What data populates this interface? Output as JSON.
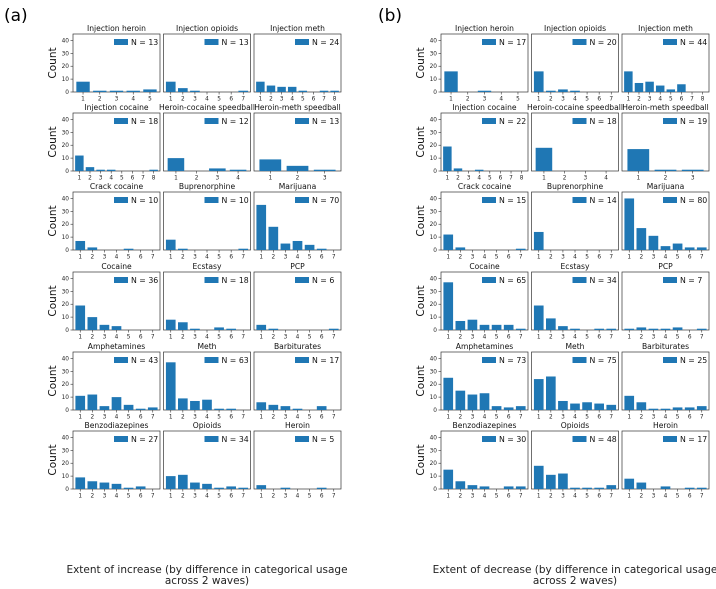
{
  "labels": {
    "panel_a": "(a)",
    "panel_b": "(b)"
  },
  "chart_data": [
    {
      "type": "bar",
      "panel": "(a)",
      "xlabel": "Extent of increase (by difference in categorical usage across 2 waves)",
      "ylabel": "Count",
      "ylim": [
        0,
        45
      ],
      "yticks": [
        0,
        10,
        20,
        30,
        40
      ],
      "bar_color": "#1f77b4",
      "subplots": [
        {
          "title": "Injection heroin",
          "legend": "N = 13",
          "x": [
            1,
            2,
            3,
            4,
            5
          ],
          "values": [
            8,
            1,
            1,
            1,
            2
          ]
        },
        {
          "title": "Injection opioids",
          "legend": "N = 13",
          "x": [
            1,
            2,
            3,
            4,
            5,
            6,
            7
          ],
          "values": [
            8,
            3,
            1,
            0,
            0,
            0,
            1
          ]
        },
        {
          "title": "Injection meth",
          "legend": "N = 24",
          "x": [
            1,
            2,
            3,
            4,
            5,
            6,
            7,
            8
          ],
          "values": [
            8,
            5,
            4,
            4,
            1,
            0,
            1,
            1
          ]
        },
        {
          "title": "Injection cocaine",
          "legend": "N = 18",
          "x": [
            1,
            2,
            3,
            4,
            5,
            6,
            7,
            8
          ],
          "values": [
            12,
            3,
            1,
            1,
            0,
            0,
            0,
            1
          ]
        },
        {
          "title": "Heroin-cocaine speedball",
          "legend": "N = 12",
          "x": [
            1,
            2,
            3,
            4
          ],
          "values": [
            10,
            0,
            2,
            1
          ]
        },
        {
          "title": "Heroin-meth speedball",
          "legend": "N = 13",
          "x": [
            1,
            2,
            3
          ],
          "values": [
            9,
            4,
            1
          ]
        },
        {
          "title": "Crack cocaine",
          "legend": "N = 10",
          "x": [
            1,
            2,
            3,
            4,
            5,
            6,
            7
          ],
          "values": [
            7,
            2,
            0,
            0,
            1,
            0,
            0
          ]
        },
        {
          "title": "Buprenorphine",
          "legend": "N = 10",
          "x": [
            1,
            2,
            3,
            4,
            5,
            6,
            7
          ],
          "values": [
            8,
            1,
            0,
            0,
            0,
            0,
            1
          ]
        },
        {
          "title": "Marijuana",
          "legend": "N = 70",
          "x": [
            1,
            2,
            3,
            4,
            5,
            6,
            7
          ],
          "values": [
            35,
            18,
            5,
            7,
            4,
            1,
            0
          ]
        },
        {
          "title": "Cocaine",
          "legend": "N = 36",
          "x": [
            1,
            2,
            3,
            4,
            5,
            6,
            7
          ],
          "values": [
            19,
            10,
            4,
            3,
            0,
            0,
            0
          ]
        },
        {
          "title": "Ecstasy",
          "legend": "N = 18",
          "x": [
            1,
            2,
            3,
            4,
            5,
            6,
            7
          ],
          "values": [
            8,
            6,
            1,
            0,
            2,
            1,
            0
          ]
        },
        {
          "title": "PCP",
          "legend": "N = 6",
          "x": [
            1,
            2,
            3,
            4,
            5,
            6,
            7
          ],
          "values": [
            4,
            1,
            0,
            0,
            0,
            0,
            1
          ]
        },
        {
          "title": "Amphetamines",
          "legend": "N = 43",
          "x": [
            1,
            2,
            3,
            4,
            5,
            6,
            7
          ],
          "values": [
            11,
            12,
            3,
            10,
            4,
            1,
            2
          ]
        },
        {
          "title": "Meth",
          "legend": "N = 63",
          "x": [
            1,
            2,
            3,
            4,
            5,
            6,
            7
          ],
          "values": [
            37,
            9,
            7,
            8,
            1,
            1,
            0
          ]
        },
        {
          "title": "Barbiturates",
          "legend": "N = 17",
          "x": [
            1,
            2,
            3,
            4,
            5,
            6,
            7
          ],
          "values": [
            6,
            4,
            3,
            1,
            0,
            3,
            0
          ]
        },
        {
          "title": "Benzodiazepines",
          "legend": "N = 27",
          "x": [
            1,
            2,
            3,
            4,
            5,
            6,
            7
          ],
          "values": [
            9,
            6,
            5,
            4,
            1,
            2,
            0
          ]
        },
        {
          "title": "Opioids",
          "legend": "N = 34",
          "x": [
            1,
            2,
            3,
            4,
            5,
            6,
            7
          ],
          "values": [
            10,
            11,
            5,
            4,
            1,
            2,
            1
          ]
        },
        {
          "title": "Heroin",
          "legend": "N = 5",
          "x": [
            1,
            2,
            3,
            4,
            5,
            6,
            7
          ],
          "values": [
            3,
            0,
            1,
            0,
            0,
            1,
            0
          ]
        }
      ]
    },
    {
      "type": "bar",
      "panel": "(b)",
      "xlabel": "Extent of decrease (by difference in categorical usage across 2 waves)",
      "ylabel": "Count",
      "ylim": [
        0,
        45
      ],
      "yticks": [
        0,
        10,
        20,
        30,
        40
      ],
      "bar_color": "#1f77b4",
      "subplots": [
        {
          "title": "Injection heroin",
          "legend": "N = 17",
          "x": [
            1,
            2,
            3,
            4,
            5
          ],
          "values": [
            16,
            0,
            1,
            0,
            0
          ]
        },
        {
          "title": "Injection opioids",
          "legend": "N = 20",
          "x": [
            1,
            2,
            3,
            4,
            5,
            6,
            7
          ],
          "values": [
            16,
            1,
            2,
            1,
            0,
            0,
            0
          ]
        },
        {
          "title": "Injection meth",
          "legend": "N = 44",
          "x": [
            1,
            2,
            3,
            4,
            5,
            6,
            7,
            8
          ],
          "values": [
            16,
            7,
            8,
            5,
            2,
            6,
            0,
            0
          ]
        },
        {
          "title": "Injection cocaine",
          "legend": "N = 22",
          "x": [
            1,
            2,
            3,
            4,
            5,
            6,
            7,
            8
          ],
          "values": [
            19,
            2,
            0,
            1,
            0,
            0,
            0,
            0
          ]
        },
        {
          "title": "Heroin-cocaine speedball",
          "legend": "N = 18",
          "x": [
            1,
            2,
            3,
            4
          ],
          "values": [
            18,
            0,
            0,
            0
          ]
        },
        {
          "title": "Heroin-meth speedball",
          "legend": "N = 19",
          "x": [
            1,
            2,
            3
          ],
          "values": [
            17,
            1,
            1
          ]
        },
        {
          "title": "Crack cocaine",
          "legend": "N = 15",
          "x": [
            1,
            2,
            3,
            4,
            5,
            6,
            7
          ],
          "values": [
            12,
            2,
            0,
            0,
            0,
            0,
            1
          ]
        },
        {
          "title": "Buprenorphine",
          "legend": "N = 14",
          "x": [
            1,
            2,
            3,
            4,
            5,
            6,
            7
          ],
          "values": [
            14,
            0,
            0,
            0,
            0,
            0,
            0
          ]
        },
        {
          "title": "Marijuana",
          "legend": "N = 80",
          "x": [
            1,
            2,
            3,
            4,
            5,
            6,
            7
          ],
          "values": [
            40,
            17,
            11,
            3,
            5,
            2,
            2
          ]
        },
        {
          "title": "Cocaine",
          "legend": "N = 65",
          "x": [
            1,
            2,
            3,
            4,
            5,
            6,
            7
          ],
          "values": [
            37,
            7,
            8,
            4,
            4,
            4,
            1
          ]
        },
        {
          "title": "Ecstasy",
          "legend": "N = 34",
          "x": [
            1,
            2,
            3,
            4,
            5,
            6,
            7
          ],
          "values": [
            19,
            9,
            3,
            1,
            0,
            1,
            1
          ]
        },
        {
          "title": "PCP",
          "legend": "N = 7",
          "x": [
            1,
            2,
            3,
            4,
            5,
            6,
            7
          ],
          "values": [
            1,
            2,
            1,
            1,
            2,
            0,
            1
          ]
        },
        {
          "title": "Amphetamines",
          "legend": "N = 73",
          "x": [
            1,
            2,
            3,
            4,
            5,
            6,
            7
          ],
          "values": [
            25,
            15,
            12,
            13,
            3,
            2,
            3
          ]
        },
        {
          "title": "Meth",
          "legend": "N = 75",
          "x": [
            1,
            2,
            3,
            4,
            5,
            6,
            7
          ],
          "values": [
            24,
            26,
            7,
            5,
            6,
            5,
            4
          ]
        },
        {
          "title": "Barbiturates",
          "legend": "N = 25",
          "x": [
            1,
            2,
            3,
            4,
            5,
            6,
            7
          ],
          "values": [
            11,
            6,
            1,
            1,
            2,
            2,
            3
          ]
        },
        {
          "title": "Benzodiazepines",
          "legend": "N = 30",
          "x": [
            1,
            2,
            3,
            4,
            5,
            6,
            7
          ],
          "values": [
            15,
            6,
            3,
            2,
            0,
            2,
            2
          ]
        },
        {
          "title": "Opioids",
          "legend": "N = 48",
          "x": [
            1,
            2,
            3,
            4,
            5,
            6,
            7
          ],
          "values": [
            18,
            11,
            12,
            1,
            1,
            1,
            3
          ]
        },
        {
          "title": "Heroin",
          "legend": "N = 17",
          "x": [
            1,
            2,
            3,
            4,
            5,
            6,
            7
          ],
          "values": [
            8,
            5,
            0,
            2,
            0,
            1,
            1
          ]
        }
      ]
    }
  ]
}
